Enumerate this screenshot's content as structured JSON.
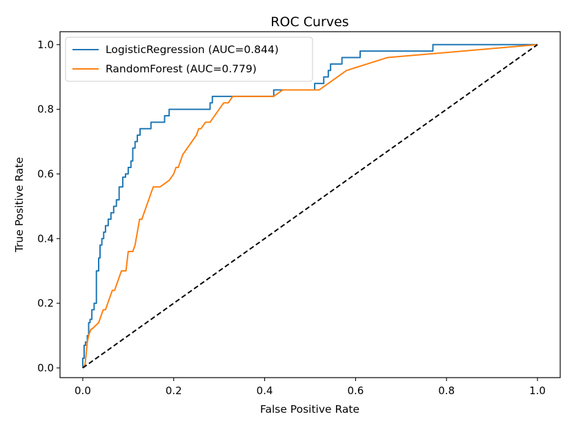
{
  "chart_data": {
    "type": "line",
    "title": "ROC Curves",
    "xlabel": "False Positive Rate",
    "ylabel": "True Positive Rate",
    "xlim": [
      -0.05,
      1.05
    ],
    "ylim": [
      -0.03,
      1.04
    ],
    "xticks": [
      0.0,
      0.2,
      0.4,
      0.6,
      0.8,
      1.0
    ],
    "xtick_labels": [
      "0.0",
      "0.2",
      "0.4",
      "0.6",
      "0.8",
      "1.0"
    ],
    "yticks": [
      0.0,
      0.2,
      0.4,
      0.6,
      0.8,
      1.0
    ],
    "ytick_labels": [
      "0.0",
      "0.2",
      "0.4",
      "0.6",
      "0.8",
      "1.0"
    ],
    "grid": false,
    "legend_position": "upper-left",
    "series": [
      {
        "name": "LogisticRegression (AUC=0.844)",
        "color": "#1f77b4",
        "style": "solid",
        "x": [
          0.0,
          0.0,
          0.003,
          0.003,
          0.006,
          0.006,
          0.01,
          0.01,
          0.013,
          0.013,
          0.016,
          0.016,
          0.02,
          0.02,
          0.025,
          0.025,
          0.03,
          0.03,
          0.035,
          0.035,
          0.038,
          0.038,
          0.042,
          0.042,
          0.046,
          0.046,
          0.05,
          0.05,
          0.056,
          0.056,
          0.062,
          0.062,
          0.068,
          0.068,
          0.074,
          0.074,
          0.08,
          0.08,
          0.088,
          0.088,
          0.094,
          0.094,
          0.1,
          0.1,
          0.106,
          0.106,
          0.11,
          0.11,
          0.115,
          0.115,
          0.12,
          0.12,
          0.126,
          0.126,
          0.135,
          0.135,
          0.15,
          0.15,
          0.18,
          0.18,
          0.19,
          0.19,
          0.205,
          0.205,
          0.28,
          0.28,
          0.285,
          0.285,
          0.29,
          0.29,
          0.42,
          0.42,
          0.51,
          0.51,
          0.53,
          0.53,
          0.54,
          0.54,
          0.545,
          0.545,
          0.57,
          0.57,
          0.61,
          0.61,
          0.77,
          0.77,
          1.0
        ],
        "y": [
          0.0,
          0.03,
          0.03,
          0.07,
          0.07,
          0.08,
          0.08,
          0.1,
          0.1,
          0.14,
          0.14,
          0.15,
          0.15,
          0.18,
          0.18,
          0.2,
          0.2,
          0.3,
          0.3,
          0.34,
          0.34,
          0.38,
          0.38,
          0.4,
          0.4,
          0.42,
          0.42,
          0.44,
          0.44,
          0.46,
          0.46,
          0.48,
          0.48,
          0.5,
          0.5,
          0.52,
          0.52,
          0.56,
          0.56,
          0.59,
          0.59,
          0.6,
          0.6,
          0.62,
          0.62,
          0.64,
          0.64,
          0.68,
          0.68,
          0.7,
          0.7,
          0.72,
          0.72,
          0.74,
          0.74,
          0.74,
          0.74,
          0.76,
          0.76,
          0.78,
          0.78,
          0.8,
          0.8,
          0.8,
          0.8,
          0.82,
          0.82,
          0.84,
          0.84,
          0.84,
          0.84,
          0.86,
          0.86,
          0.88,
          0.88,
          0.9,
          0.9,
          0.92,
          0.92,
          0.94,
          0.94,
          0.96,
          0.96,
          0.98,
          0.98,
          1.0,
          1.0
        ]
      },
      {
        "name": "RandomForest (AUC=0.779)",
        "color": "#ff7f0e",
        "style": "solid",
        "x": [
          0.0,
          0.005,
          0.008,
          0.01,
          0.013,
          0.018,
          0.02,
          0.035,
          0.04,
          0.045,
          0.05,
          0.06,
          0.065,
          0.07,
          0.075,
          0.08,
          0.085,
          0.09,
          0.095,
          0.1,
          0.105,
          0.11,
          0.115,
          0.12,
          0.125,
          0.13,
          0.135,
          0.14,
          0.145,
          0.15,
          0.155,
          0.16,
          0.165,
          0.17,
          0.19,
          0.2,
          0.205,
          0.21,
          0.215,
          0.22,
          0.23,
          0.24,
          0.25,
          0.255,
          0.26,
          0.27,
          0.28,
          0.29,
          0.3,
          0.31,
          0.32,
          0.33,
          0.34,
          0.35,
          0.38,
          0.42,
          0.44,
          0.52,
          0.54,
          0.58,
          0.67,
          1.0
        ],
        "y": [
          0.0,
          0.01,
          0.05,
          0.08,
          0.1,
          0.12,
          0.12,
          0.14,
          0.16,
          0.18,
          0.18,
          0.22,
          0.24,
          0.24,
          0.26,
          0.28,
          0.3,
          0.3,
          0.3,
          0.36,
          0.36,
          0.36,
          0.38,
          0.42,
          0.46,
          0.46,
          0.48,
          0.5,
          0.52,
          0.54,
          0.56,
          0.56,
          0.56,
          0.56,
          0.58,
          0.6,
          0.62,
          0.62,
          0.64,
          0.66,
          0.68,
          0.7,
          0.72,
          0.74,
          0.74,
          0.76,
          0.76,
          0.78,
          0.8,
          0.82,
          0.82,
          0.84,
          0.84,
          0.84,
          0.84,
          0.84,
          0.86,
          0.86,
          0.88,
          0.92,
          0.96,
          1.0
        ]
      },
      {
        "name": "",
        "color": "#000000",
        "style": "dashed",
        "x": [
          0.0,
          1.0
        ],
        "y": [
          0.0,
          1.0
        ]
      }
    ]
  }
}
